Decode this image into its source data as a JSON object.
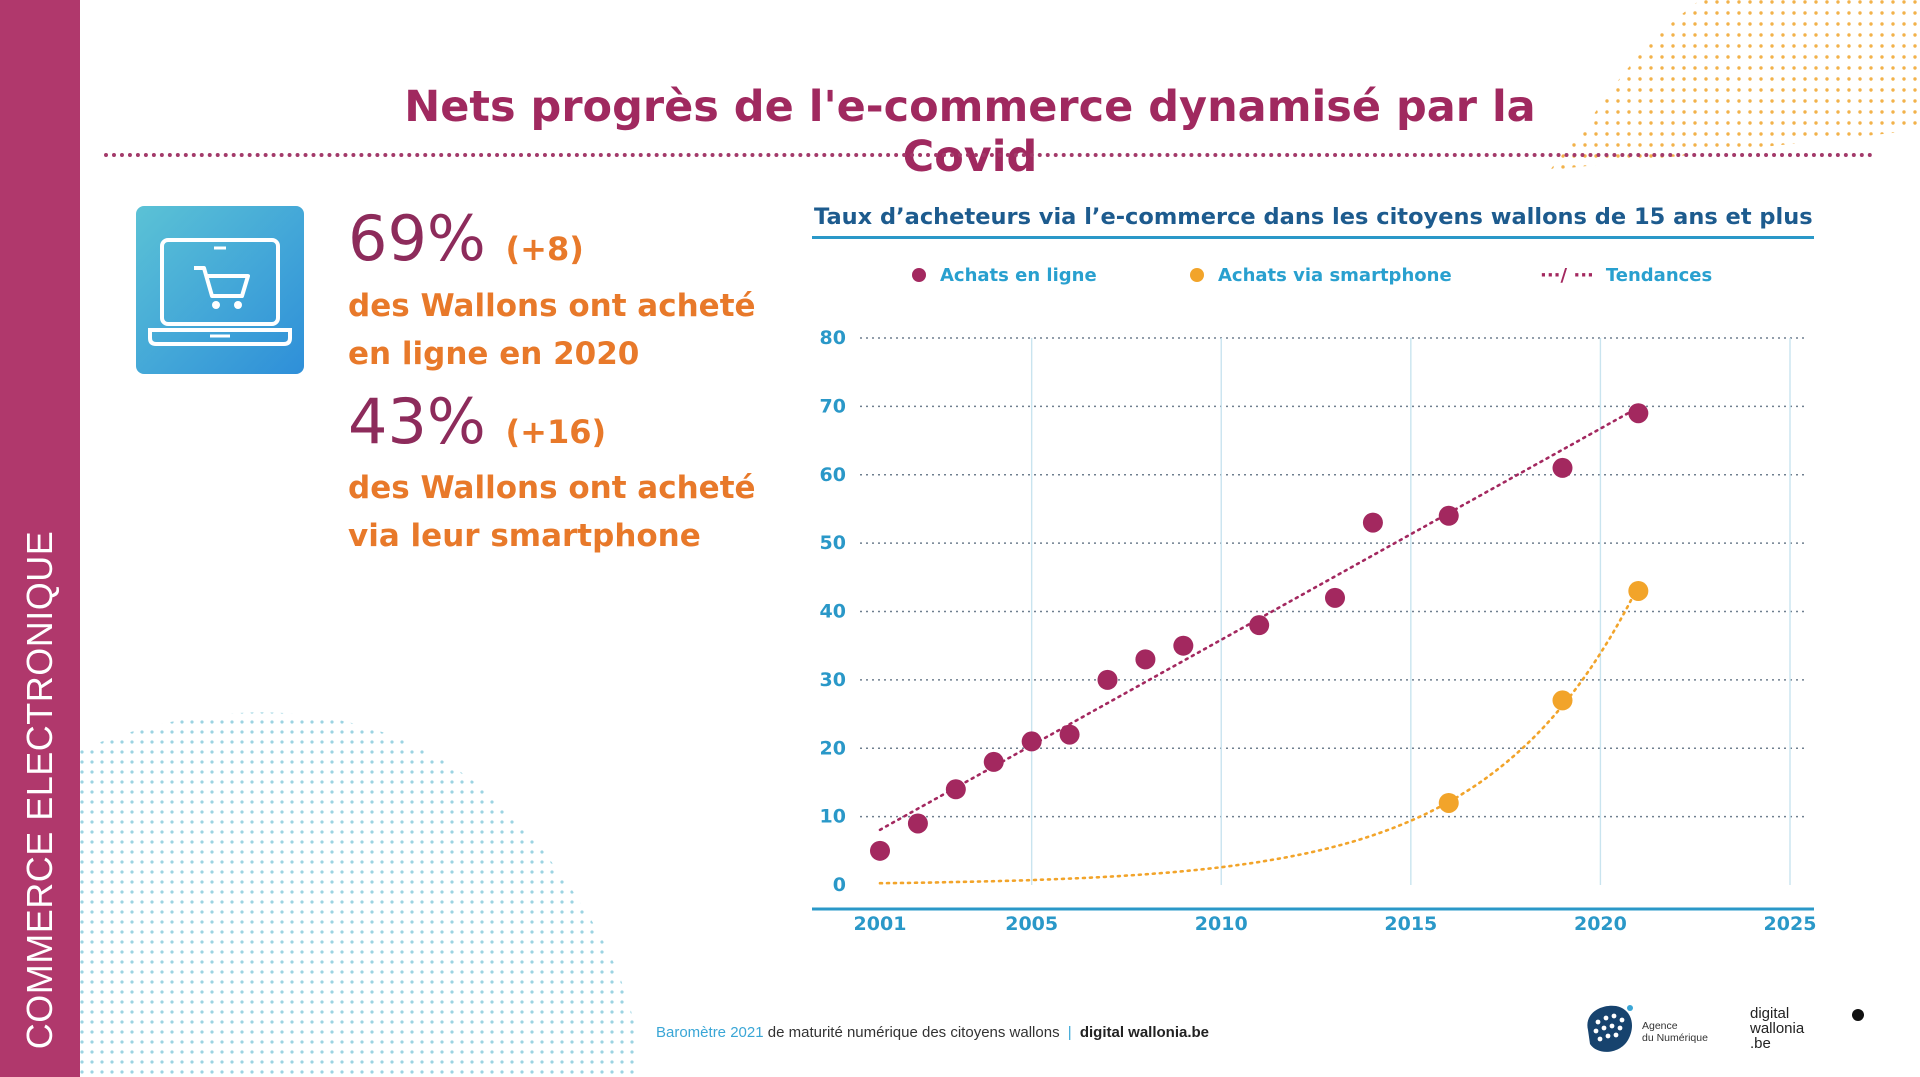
{
  "sidebar": {
    "label": "COMMERCE ELECTRONIQUE"
  },
  "header": {
    "title": "Nets progrès de l'e-commerce dynamisé par la Covid"
  },
  "stats": [
    {
      "value": "69%",
      "delta": "(+8)",
      "line1": "des Wallons ont acheté",
      "line2": "en ligne en 2020"
    },
    {
      "value": "43%",
      "delta": "(+16)",
      "line1": "des Wallons ont acheté",
      "line2": "via leur smartphone"
    }
  ],
  "icons": {
    "stat_icon": "laptop-cart-icon"
  },
  "colors": {
    "primary": "#a0295f",
    "accent": "#e8792a",
    "online": "#a3285f",
    "smartphone": "#f2a42a",
    "axis": "#2a98c8"
  },
  "chart_data": {
    "type": "scatter",
    "title": "Taux d’acheteurs via l’e-commerce dans les citoyens wallons de 15 ans et plus",
    "legend": [
      "Achats en ligne",
      "Achats via smartphone",
      "Tendances"
    ],
    "legend_trend_symbol": "···/ ···",
    "legend_position": "top",
    "xlim": [
      2001,
      2025
    ],
    "ylim": [
      0,
      80
    ],
    "xticks": [
      "2001",
      "2005",
      "2010",
      "2015",
      "2020",
      "2025"
    ],
    "yticks": [
      "0",
      "10",
      "20",
      "30",
      "40",
      "50",
      "60",
      "70",
      "80"
    ],
    "grid": true,
    "series": [
      {
        "name": "Achats en ligne",
        "points": [
          [
            2001,
            5
          ],
          [
            2002,
            9
          ],
          [
            2003,
            14
          ],
          [
            2004,
            18
          ],
          [
            2005,
            21
          ],
          [
            2006,
            22
          ],
          [
            2007,
            30
          ],
          [
            2008,
            33
          ],
          [
            2009,
            35
          ],
          [
            2011,
            38
          ],
          [
            2013,
            42
          ],
          [
            2014,
            53
          ],
          [
            2016,
            54
          ],
          [
            2019,
            61
          ],
          [
            2021,
            69
          ]
        ],
        "trend": "linear"
      },
      {
        "name": "Achats via smartphone",
        "points": [
          [
            2016,
            12
          ],
          [
            2019,
            27
          ],
          [
            2021,
            43
          ]
        ],
        "trend": "exponential"
      }
    ]
  },
  "footer": {
    "barometer": "Baromètre 2021",
    "text": "de maturité numérique des citoyens wallons",
    "separator": "|",
    "site": "digital wallonia.be"
  },
  "logos": {
    "agence": "Agence\ndu Numérique",
    "digital_wallonia": "digital\nwallonia\n.be"
  }
}
